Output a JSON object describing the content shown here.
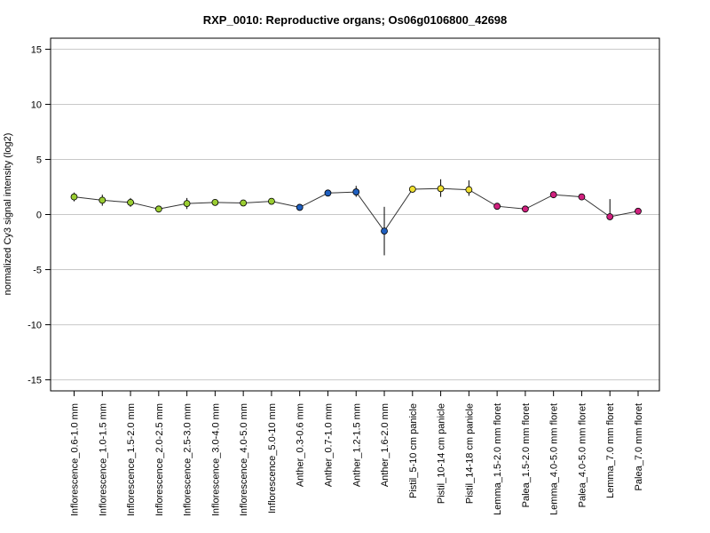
{
  "chart_data": {
    "type": "line",
    "title": "RXP_0010: Reproductive organs; Os06g0106800_42698",
    "xlabel": "",
    "ylabel": "normalized Cy3 signal intensity (log2)",
    "ylim": [
      -16,
      16
    ],
    "yticks": [
      15,
      10,
      5,
      0,
      -5,
      -10,
      -15
    ],
    "grid": "horizontal",
    "categories": [
      "Inflorescence_0.6-1.0 mm",
      "Inflorescence_1.0-1.5 mm",
      "Inflorescence_1.5-2.0 mm",
      "Inflorescence_2.0-2.5 mm",
      "Inflorescence_2.5-3.0 mm",
      "Inflorescence_3.0-4.0 mm",
      "Inflorescence_4.0-5.0 mm",
      "Inflorescence_5.0-10 mm",
      "Anther_0.3-0.6 mm",
      "Anther_0.7-1.0 mm",
      "Anther_1.2-1.5 mm",
      "Anther_1.6-2.0 mm",
      "Pistil_5-10 cm panicle",
      "Pistil_10-14 cm panicle",
      "Pistil_14-18 cm panicle",
      "Lemma_1.5-2.0 mm floret",
      "Palea_1.5-2.0 mm floret",
      "Lemma_4.0-5.0 mm floret",
      "Palea_4.0-5.0 mm floret",
      "Lemma_7.0 mm floret",
      "Palea_7.0 mm floret"
    ],
    "values": [
      1.6,
      1.3,
      1.1,
      0.5,
      1.0,
      1.1,
      1.05,
      1.2,
      0.65,
      1.95,
      2.05,
      -1.5,
      2.3,
      2.35,
      2.25,
      0.75,
      0.5,
      1.8,
      1.6,
      -0.2,
      0.3
    ],
    "error_low": [
      1.2,
      0.8,
      0.7,
      0.4,
      0.5,
      0.9,
      0.85,
      1.05,
      0.5,
      1.7,
      1.6,
      -3.7,
      2.0,
      1.6,
      1.7,
      0.6,
      0.4,
      1.65,
      1.45,
      -0.5,
      0.15
    ],
    "error_high": [
      2.0,
      1.8,
      1.5,
      0.6,
      1.5,
      1.3,
      1.25,
      1.35,
      0.8,
      2.2,
      2.6,
      0.7,
      2.6,
      3.2,
      3.1,
      0.9,
      0.6,
      1.95,
      1.75,
      1.4,
      0.45
    ],
    "point_colors": [
      "#9ACD32",
      "#9ACD32",
      "#9ACD32",
      "#9ACD32",
      "#9ACD32",
      "#9ACD32",
      "#9ACD32",
      "#9ACD32",
      "#1F5FBF",
      "#1F5FBF",
      "#1F5FBF",
      "#1F5FBF",
      "#F0E030",
      "#F0E030",
      "#F0E030",
      "#D0207E",
      "#D0207E",
      "#D0207E",
      "#D0207E",
      "#D0207E",
      "#D0207E"
    ],
    "line_color": "#333333",
    "grid_color": "#c8c8c8"
  }
}
